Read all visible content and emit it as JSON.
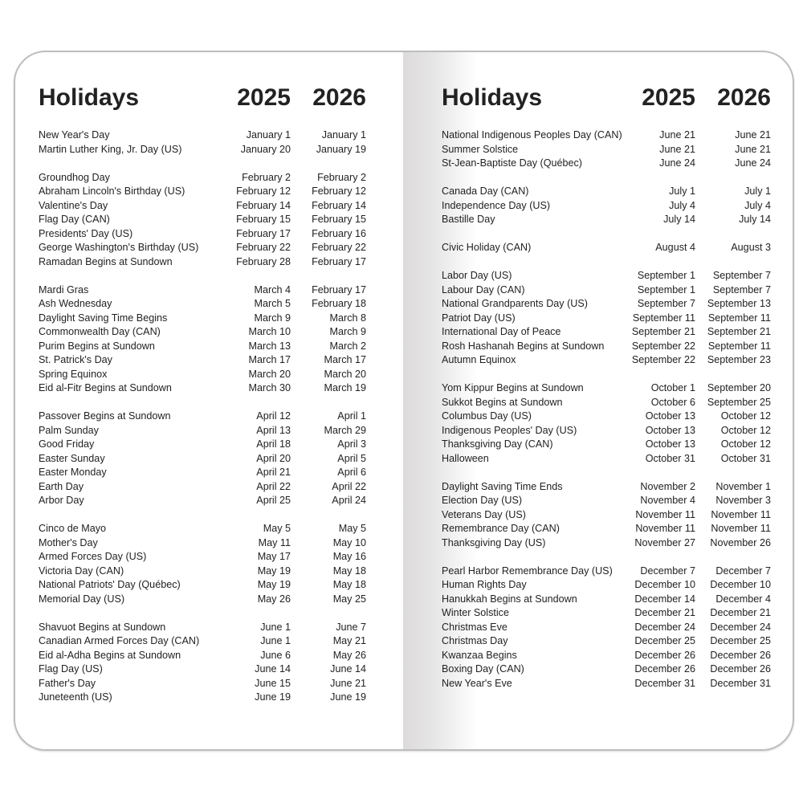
{
  "pages": [
    {
      "title": "Holidays",
      "years": [
        "2025",
        "2026"
      ],
      "groups": [
        [
          [
            "New Year's Day",
            "January 1",
            "January 1"
          ],
          [
            "Martin Luther King, Jr. Day (US)",
            "January 20",
            "January 19"
          ]
        ],
        [
          [
            "Groundhog Day",
            "February 2",
            "February 2"
          ],
          [
            "Abraham Lincoln's Birthday (US)",
            "February 12",
            "February 12"
          ],
          [
            "Valentine's Day",
            "February 14",
            "February 14"
          ],
          [
            "Flag Day (CAN)",
            "February 15",
            "February 15"
          ],
          [
            "Presidents' Day (US)",
            "February 17",
            "February 16"
          ],
          [
            "George Washington's Birthday (US)",
            "February 22",
            "February 22"
          ],
          [
            "Ramadan Begins at Sundown",
            "February 28",
            "February 17"
          ]
        ],
        [
          [
            "Mardi Gras",
            "March 4",
            "February 17"
          ],
          [
            "Ash Wednesday",
            "March 5",
            "February 18"
          ],
          [
            "Daylight Saving Time Begins",
            "March 9",
            "March 8"
          ],
          [
            "Commonwealth Day (CAN)",
            "March 10",
            "March 9"
          ],
          [
            "Purim Begins at Sundown",
            "March 13",
            "March 2"
          ],
          [
            "St. Patrick's Day",
            "March 17",
            "March 17"
          ],
          [
            "Spring Equinox",
            "March 20",
            "March 20"
          ],
          [
            "Eid al-Fitr Begins at Sundown",
            "March 30",
            "March 19"
          ]
        ],
        [
          [
            "Passover Begins at Sundown",
            "April 12",
            "April 1"
          ],
          [
            "Palm Sunday",
            "April 13",
            "March 29"
          ],
          [
            "Good Friday",
            "April 18",
            "April 3"
          ],
          [
            "Easter Sunday",
            "April 20",
            "April 5"
          ],
          [
            "Easter Monday",
            "April 21",
            "April 6"
          ],
          [
            "Earth Day",
            "April 22",
            "April 22"
          ],
          [
            "Arbor Day",
            "April 25",
            "April 24"
          ]
        ],
        [
          [
            "Cinco de Mayo",
            "May 5",
            "May 5"
          ],
          [
            "Mother's Day",
            "May 11",
            "May 10"
          ],
          [
            "Armed Forces Day (US)",
            "May 17",
            "May 16"
          ],
          [
            "Victoria Day (CAN)",
            "May 19",
            "May 18"
          ],
          [
            "National Patriots' Day (Québec)",
            "May 19",
            "May 18"
          ],
          [
            "Memorial Day (US)",
            "May 26",
            "May 25"
          ]
        ],
        [
          [
            "Shavuot Begins at Sundown",
            "June 1",
            "June 7"
          ],
          [
            "Canadian Armed Forces Day (CAN)",
            "June 1",
            "May 21"
          ],
          [
            "Eid al-Adha Begins at Sundown",
            "June 6",
            "May 26"
          ],
          [
            "Flag Day (US)",
            "June 14",
            "June 14"
          ],
          [
            "Father's Day",
            "June 15",
            "June 21"
          ],
          [
            "Juneteenth (US)",
            "June 19",
            "June 19"
          ]
        ]
      ]
    },
    {
      "title": "Holidays",
      "years": [
        "2025",
        "2026"
      ],
      "groups": [
        [
          [
            "National Indigenous Peoples Day (CAN)",
            "June 21",
            "June 21"
          ],
          [
            "Summer Solstice",
            "June 21",
            "June 21"
          ],
          [
            "St-Jean-Baptiste Day (Québec)",
            "June 24",
            "June 24"
          ]
        ],
        [
          [
            "Canada Day (CAN)",
            "July 1",
            "July 1"
          ],
          [
            "Independence Day (US)",
            "July 4",
            "July 4"
          ],
          [
            "Bastille Day",
            "July 14",
            "July 14"
          ]
        ],
        [
          [
            "Civic Holiday (CAN)",
            "August 4",
            "August 3"
          ]
        ],
        [
          [
            "Labor Day (US)",
            "September 1",
            "September 7"
          ],
          [
            "Labour Day (CAN)",
            "September 1",
            "September 7"
          ],
          [
            "National Grandparents Day (US)",
            "September 7",
            "September 13"
          ],
          [
            "Patriot Day (US)",
            "September 11",
            "September 11"
          ],
          [
            "International Day of Peace",
            "September 21",
            "September 21"
          ],
          [
            "Rosh Hashanah Begins at Sundown",
            "September 22",
            "September 11"
          ],
          [
            "Autumn Equinox",
            "September 22",
            "September 23"
          ]
        ],
        [
          [
            "Yom Kippur Begins at Sundown",
            "October 1",
            "September 20"
          ],
          [
            "Sukkot Begins at Sundown",
            "October 6",
            "September 25"
          ],
          [
            "Columbus Day (US)",
            "October 13",
            "October 12"
          ],
          [
            "Indigenous Peoples' Day (US)",
            "October 13",
            "October 12"
          ],
          [
            "Thanksgiving Day (CAN)",
            "October 13",
            "October 12"
          ],
          [
            "Halloween",
            "October 31",
            "October 31"
          ]
        ],
        [
          [
            "Daylight Saving Time Ends",
            "November 2",
            "November 1"
          ],
          [
            "Election Day (US)",
            "November 4",
            "November 3"
          ],
          [
            "Veterans Day (US)",
            "November 11",
            "November 11"
          ],
          [
            "Remembrance Day (CAN)",
            "November 11",
            "November 11"
          ],
          [
            "Thanksgiving Day (US)",
            "November 27",
            "November 26"
          ]
        ],
        [
          [
            "Pearl Harbor Remembrance Day (US)",
            "December 7",
            "December 7"
          ],
          [
            "Human Rights Day",
            "December 10",
            "December 10"
          ],
          [
            "Hanukkah Begins at Sundown",
            "December 14",
            "December 4"
          ],
          [
            "Winter Solstice",
            "December 21",
            "December 21"
          ],
          [
            "Christmas Eve",
            "December 24",
            "December 24"
          ],
          [
            "Christmas Day",
            "December 25",
            "December 25"
          ],
          [
            "Kwanzaa Begins",
            "December 26",
            "December 26"
          ],
          [
            "Boxing Day (CAN)",
            "December 26",
            "December 26"
          ],
          [
            "New Year's Eve",
            "December 31",
            "December 31"
          ]
        ]
      ]
    }
  ]
}
